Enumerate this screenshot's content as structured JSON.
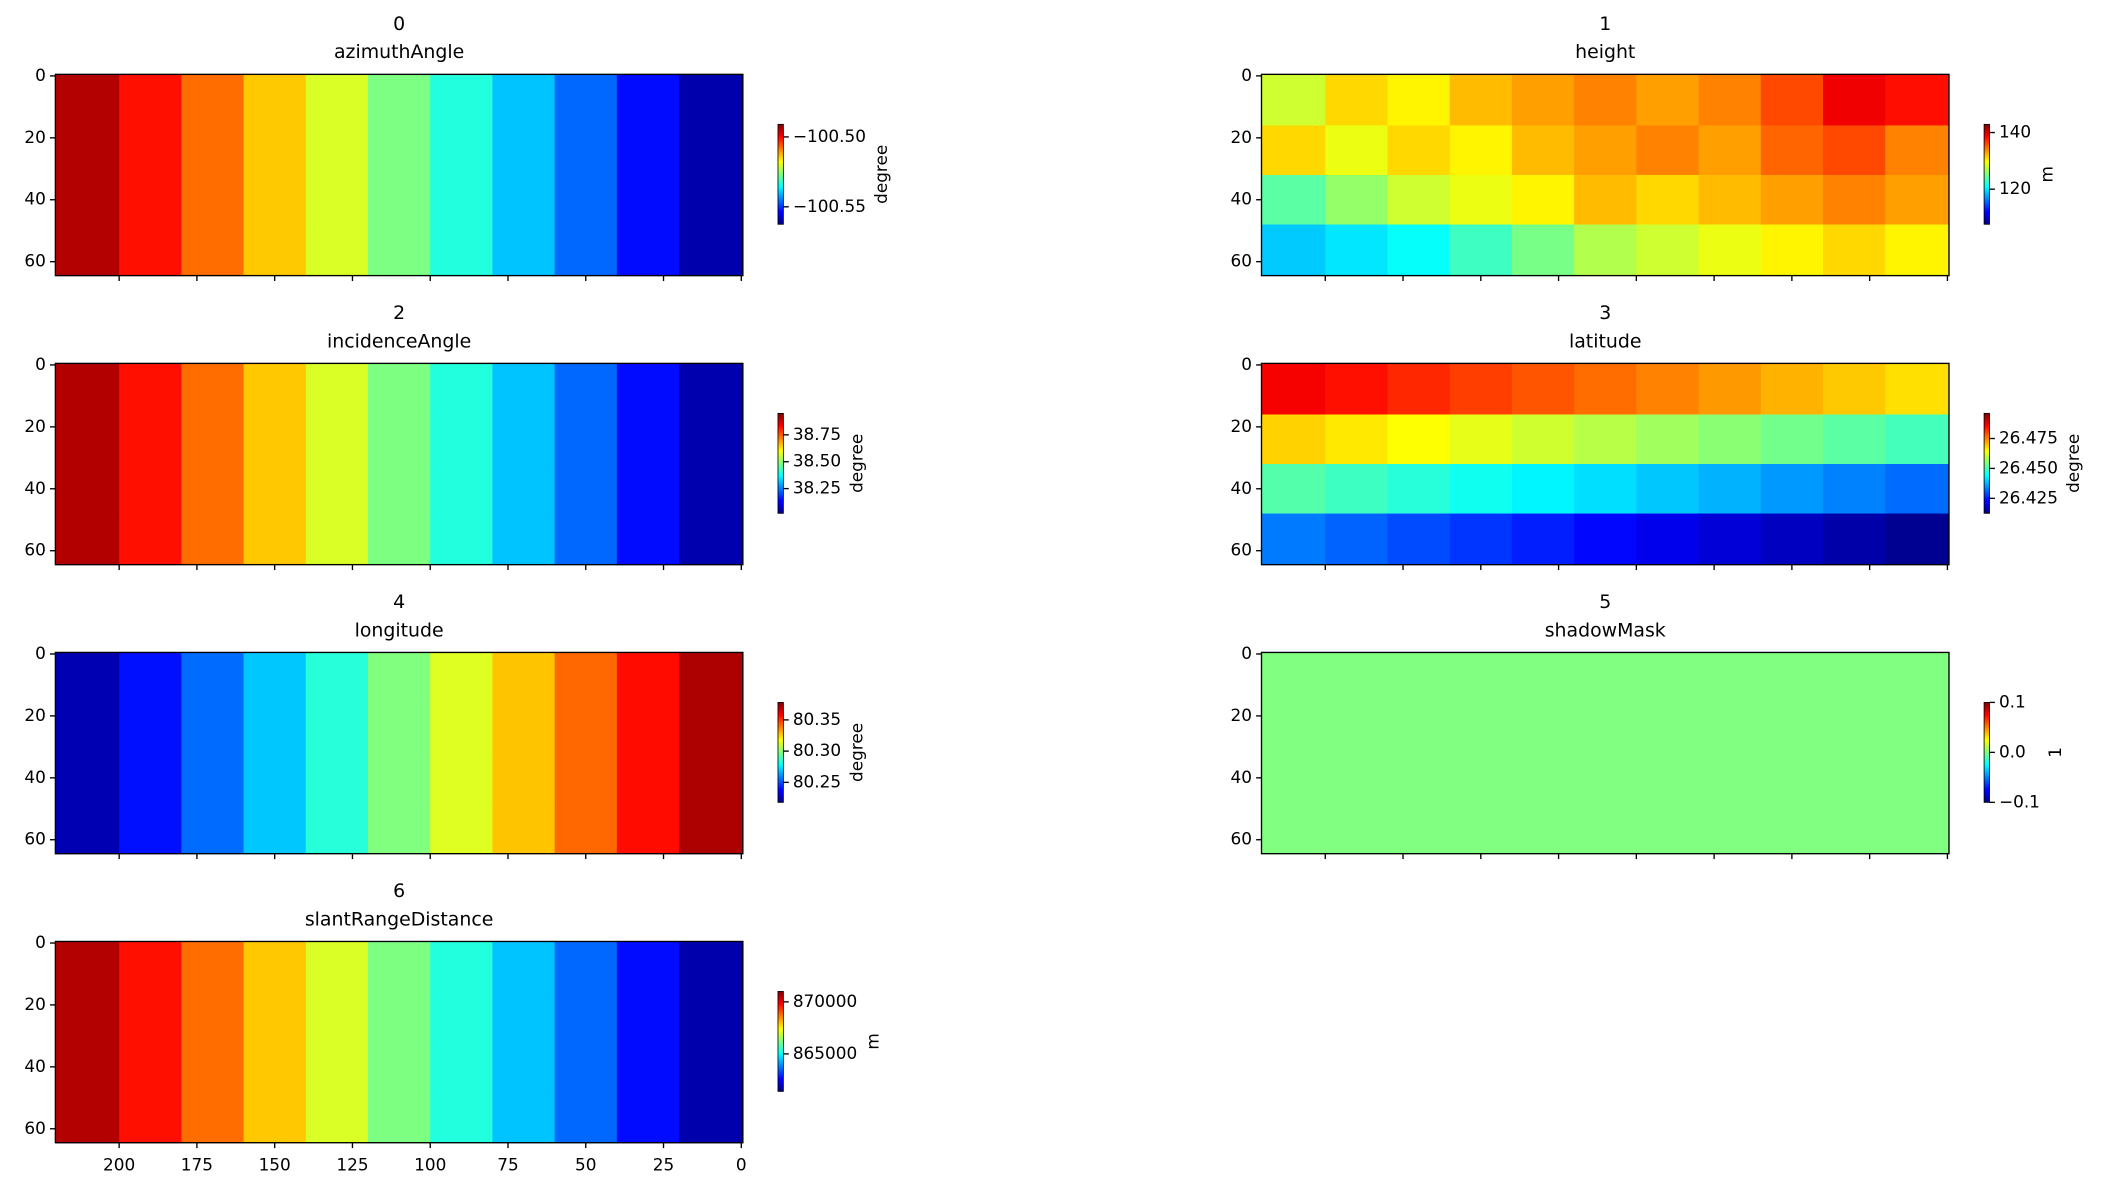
{
  "chart_data": [
    {
      "type": "heatmap",
      "title": "0",
      "subtitle": "azimuthAngle",
      "colormap": "jet",
      "x": [
        210,
        190,
        170,
        150,
        130,
        110,
        90,
        70,
        50,
        30,
        10
      ],
      "y": [
        8,
        24,
        40,
        56
      ],
      "z": [
        [
          -100.4946,
          -100.501,
          -100.5075,
          -100.514,
          -100.5205,
          -100.527,
          -100.5334,
          -100.5398,
          -100.5463,
          -100.5528,
          -100.5593
        ],
        [
          -100.4946,
          -100.501,
          -100.5075,
          -100.514,
          -100.5205,
          -100.527,
          -100.5334,
          -100.5398,
          -100.5463,
          -100.5528,
          -100.5593
        ],
        [
          -100.4946,
          -100.501,
          -100.5075,
          -100.514,
          -100.5205,
          -100.527,
          -100.5334,
          -100.5398,
          -100.5463,
          -100.5528,
          -100.5593
        ],
        [
          -100.4946,
          -100.501,
          -100.5075,
          -100.514,
          -100.5205,
          -100.527,
          -100.5334,
          -100.5398,
          -100.5463,
          -100.5528,
          -100.5593
        ]
      ],
      "xlim": [
        220.5,
        -0.5
      ],
      "ylim": [
        64.5,
        -0.5
      ],
      "xticks": [
        200,
        175,
        150,
        125,
        100,
        75,
        50,
        25,
        0
      ],
      "yticks": [
        0,
        20,
        40,
        60
      ],
      "xtick_labels": false,
      "clim": [
        -100.5625,
        -100.491
      ],
      "colorbar_ticks": [
        {
          "value": -100.5,
          "label": "−100.50"
        },
        {
          "value": -100.55,
          "label": "−100.55"
        }
      ],
      "colorbar_label": "degree"
    },
    {
      "type": "heatmap",
      "title": "1",
      "subtitle": "height",
      "colormap": "jet",
      "x": [
        210,
        190,
        170,
        150,
        130,
        110,
        90,
        70,
        50,
        30,
        10
      ],
      "y": [
        8,
        24,
        40,
        56
      ],
      "z": [
        [
          128,
          131,
          130,
          132,
          133,
          134,
          133,
          134,
          136,
          139,
          138
        ],
        [
          131,
          129,
          131,
          130,
          132,
          133,
          134,
          133,
          135,
          136,
          134
        ],
        [
          124,
          126,
          128,
          129,
          130,
          132,
          131,
          132,
          133,
          134,
          133
        ],
        [
          119,
          120,
          121,
          123,
          125,
          127,
          128,
          129,
          130,
          131,
          130
        ]
      ],
      "xlim": [
        220.5,
        -0.5
      ],
      "ylim": [
        64.5,
        -0.5
      ],
      "xticks": [
        200,
        175,
        150,
        125,
        100,
        75,
        50,
        25,
        0
      ],
      "yticks": [
        0,
        20,
        40,
        60
      ],
      "xtick_labels": false,
      "clim": [
        107.6,
        142.9
      ],
      "colorbar_ticks": [
        140,
        120
      ],
      "colorbar_label": "m"
    },
    {
      "type": "heatmap",
      "title": "2",
      "subtitle": "incidenceAngle",
      "colormap": "jet",
      "x": [
        210,
        190,
        170,
        150,
        130,
        110,
        90,
        70,
        50,
        30,
        10
      ],
      "y": [
        8,
        24,
        40,
        56
      ],
      "z": [
        [
          38.904,
          38.82,
          38.735,
          38.651,
          38.567,
          38.483,
          38.399,
          38.315,
          38.23,
          38.146,
          38.062
        ],
        [
          38.904,
          38.82,
          38.735,
          38.651,
          38.567,
          38.483,
          38.399,
          38.315,
          38.23,
          38.146,
          38.062
        ],
        [
          38.904,
          38.82,
          38.735,
          38.651,
          38.567,
          38.483,
          38.399,
          38.315,
          38.23,
          38.146,
          38.062
        ],
        [
          38.904,
          38.82,
          38.735,
          38.651,
          38.567,
          38.483,
          38.399,
          38.315,
          38.23,
          38.146,
          38.062
        ]
      ],
      "xlim": [
        220.5,
        -0.5
      ],
      "ylim": [
        64.5,
        -0.5
      ],
      "xticks": [
        200,
        175,
        150,
        125,
        100,
        75,
        50,
        25,
        0
      ],
      "yticks": [
        0,
        20,
        40,
        60
      ],
      "xtick_labels": false,
      "clim": [
        38.02,
        38.95
      ],
      "colorbar_ticks": [
        38.75,
        {
          "value": 38.5,
          "label": "38.50"
        },
        38.25
      ],
      "colorbar_label": "degree"
    },
    {
      "type": "heatmap",
      "title": "3",
      "subtitle": "latitude",
      "colormap": "jet",
      "x": [
        210,
        190,
        170,
        150,
        130,
        110,
        90,
        70,
        50,
        30,
        10
      ],
      "y": [
        8,
        24,
        40,
        56
      ],
      "z": [
        [
          26.4862,
          26.4843,
          26.4824,
          26.4805,
          26.4786,
          26.4767,
          26.4748,
          26.473,
          26.471,
          26.4691,
          26.4672
        ],
        [
          26.4684,
          26.4665,
          26.4646,
          26.4627,
          26.4608,
          26.4589,
          26.457,
          26.4552,
          26.4532,
          26.4513,
          26.4494
        ],
        [
          26.4507,
          26.4488,
          26.4469,
          26.445,
          26.4431,
          26.4412,
          26.4393,
          26.4375,
          26.4355,
          26.4336,
          26.4317
        ],
        [
          26.433,
          26.431,
          26.4291,
          26.4272,
          26.4254,
          26.4234,
          26.4215,
          26.4197,
          26.4178,
          26.4158,
          26.4139
        ]
      ],
      "xlim": [
        220.5,
        -0.5
      ],
      "ylim": [
        64.5,
        -0.5
      ],
      "xticks": [
        200,
        175,
        150,
        125,
        100,
        75,
        50,
        25,
        0
      ],
      "yticks": [
        0,
        20,
        40,
        60
      ],
      "xtick_labels": false,
      "clim": [
        26.4125,
        26.496
      ],
      "colorbar_ticks": [
        26.475,
        {
          "value": 26.45,
          "label": "26.450"
        },
        26.425
      ],
      "colorbar_label": "degree"
    },
    {
      "type": "heatmap",
      "title": "4",
      "subtitle": "longitude",
      "colormap": "jet",
      "x": [
        210,
        190,
        170,
        150,
        130,
        110,
        90,
        70,
        50,
        30,
        10
      ],
      "y": [
        8,
        24,
        40,
        56
      ],
      "z": [
        [
          80.226,
          80.2404,
          80.255,
          80.2694,
          80.2839,
          80.2983,
          80.3129,
          80.3273,
          80.3418,
          80.3562,
          80.3708
        ],
        [
          80.226,
          80.2404,
          80.255,
          80.2694,
          80.2839,
          80.2983,
          80.3129,
          80.3273,
          80.3418,
          80.3562,
          80.3708
        ],
        [
          80.226,
          80.2404,
          80.255,
          80.2694,
          80.2839,
          80.2983,
          80.3129,
          80.3273,
          80.3418,
          80.3562,
          80.3708
        ],
        [
          80.226,
          80.2404,
          80.255,
          80.2694,
          80.2839,
          80.2983,
          80.3129,
          80.3273,
          80.3418,
          80.3562,
          80.3708
        ]
      ],
      "xlim": [
        220.5,
        -0.5
      ],
      "ylim": [
        64.5,
        -0.5
      ],
      "xticks": [
        200,
        175,
        150,
        125,
        100,
        75,
        50,
        25,
        0
      ],
      "yticks": [
        0,
        20,
        40,
        60
      ],
      "xtick_labels": false,
      "clim": [
        80.218,
        80.378
      ],
      "colorbar_ticks": [
        80.35,
        {
          "value": 80.3,
          "label": "80.30"
        },
        80.25
      ],
      "colorbar_label": "degree"
    },
    {
      "type": "heatmap",
      "title": "5",
      "subtitle": "shadowMask",
      "colormap": "jet",
      "x": [
        210,
        190,
        170,
        150,
        130,
        110,
        90,
        70,
        50,
        30,
        10
      ],
      "y": [
        8,
        24,
        40,
        56
      ],
      "z": [
        [
          0,
          0,
          0,
          0,
          0,
          0,
          0,
          0,
          0,
          0,
          0
        ],
        [
          0,
          0,
          0,
          0,
          0,
          0,
          0,
          0,
          0,
          0,
          0
        ],
        [
          0,
          0,
          0,
          0,
          0,
          0,
          0,
          0,
          0,
          0,
          0
        ],
        [
          0,
          0,
          0,
          0,
          0,
          0,
          0,
          0,
          0,
          0,
          0
        ]
      ],
      "xlim": [
        220.5,
        -0.5
      ],
      "ylim": [
        64.5,
        -0.5
      ],
      "xticks": [
        200,
        175,
        150,
        125,
        100,
        75,
        50,
        25,
        0
      ],
      "yticks": [
        0,
        20,
        40,
        60
      ],
      "xtick_labels": false,
      "clim": [
        -0.1,
        0.1
      ],
      "colorbar_ticks": [
        0.1,
        {
          "value": 0,
          "label": "0.0"
        },
        {
          "value": -0.1,
          "label": "−0.1"
        }
      ],
      "colorbar_label": "1"
    },
    {
      "type": "heatmap",
      "title": "6",
      "subtitle": "slantRangeDistance",
      "colormap": "jet",
      "x": [
        210,
        190,
        170,
        150,
        130,
        110,
        90,
        70,
        50,
        30,
        10
      ],
      "y": [
        8,
        24,
        40,
        56
      ],
      "z": [
        [
          870520,
          869656,
          868782,
          867918,
          867045,
          866181,
          865307,
          864443,
          863570,
          862706,
          861832
        ],
        [
          870520,
          869656,
          868782,
          867918,
          867045,
          866181,
          865307,
          864443,
          863570,
          862706,
          861832
        ],
        [
          870520,
          869656,
          868782,
          867918,
          867045,
          866181,
          865307,
          864443,
          863570,
          862706,
          861832
        ],
        [
          870520,
          869656,
          868782,
          867918,
          867045,
          866181,
          865307,
          864443,
          863570,
          862706,
          861832
        ]
      ],
      "xlim": [
        220.5,
        -0.5
      ],
      "ylim": [
        64.5,
        -0.5
      ],
      "xticks": [
        200,
        175,
        150,
        125,
        100,
        75,
        50,
        25,
        0
      ],
      "yticks": [
        0,
        20,
        40,
        60
      ],
      "xtick_labels": true,
      "clim": [
        861400,
        871000
      ],
      "colorbar_ticks": [
        870000,
        865000
      ],
      "colorbar_label": "m"
    }
  ]
}
